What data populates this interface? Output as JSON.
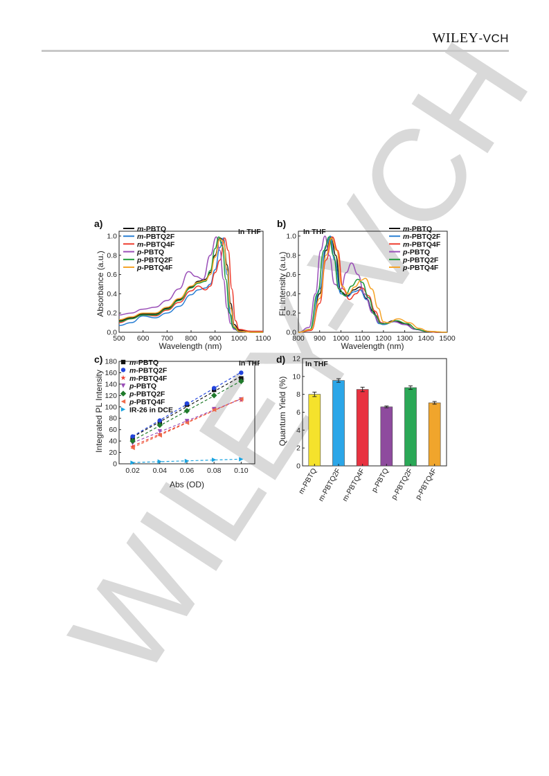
{
  "header": {
    "brand_main": "WILEY",
    "brand_suffix": "-VCH"
  },
  "watermark": {
    "text": "WILEY-VCH",
    "color": "#d9d9d9"
  },
  "colors": {
    "m-PBTQ": "#111111",
    "m-PBTQ2F": "#2a7fd4",
    "m-PBTQ4F": "#ee3a2c",
    "p-PBTQ": "#9a4fb8",
    "p-PBTQ2F": "#1f9a3a",
    "p-PBTQ4F": "#f5a428",
    "IR-26 in DCE": "#1aa3e0"
  },
  "chart_data": [
    {
      "type": "line",
      "panel_label": "a)",
      "annotation": "In THF",
      "xlabel": "Wavelength (nm)",
      "ylabel": "Absorbance (a.u.)",
      "xlim": [
        500,
        1100
      ],
      "ylim": [
        0,
        1.05
      ],
      "xticks": [
        "500",
        "600",
        "700",
        "800",
        "900",
        "1000",
        "1100"
      ],
      "yticks": [
        "0.0",
        "0.2",
        "0.4",
        "0.6",
        "0.8",
        "1.0"
      ],
      "legend_position": "top-left",
      "series": [
        {
          "name": "m-PBTQ",
          "prefix": "m",
          "suffix": "-PBTQ",
          "color": "#111111",
          "x": [
            500,
            550,
            600,
            650,
            700,
            750,
            800,
            830,
            860,
            880,
            900,
            920,
            935,
            950,
            965,
            980,
            1000,
            1050,
            1100
          ],
          "y": [
            0.12,
            0.15,
            0.19,
            0.19,
            0.25,
            0.34,
            0.47,
            0.53,
            0.55,
            0.62,
            0.8,
            0.98,
            0.96,
            0.7,
            0.3,
            0.08,
            0.02,
            0.01,
            0.01
          ]
        },
        {
          "name": "m-PBTQ2F",
          "prefix": "m",
          "suffix": "-PBTQ2F",
          "color": "#2a7fd4",
          "x": [
            500,
            550,
            600,
            650,
            700,
            750,
            800,
            830,
            860,
            880,
            900,
            920,
            935,
            950,
            965,
            980,
            1000,
            1050,
            1100
          ],
          "y": [
            0.07,
            0.1,
            0.17,
            0.15,
            0.2,
            0.27,
            0.39,
            0.44,
            0.46,
            0.5,
            0.65,
            0.88,
            0.98,
            0.6,
            0.18,
            0.04,
            0.01,
            0.0,
            0.0
          ]
        },
        {
          "name": "m-PBTQ4F",
          "prefix": "m",
          "suffix": "-PBTQ4F",
          "color": "#ee3a2c",
          "x": [
            500,
            550,
            600,
            650,
            700,
            750,
            800,
            830,
            860,
            880,
            900,
            920,
            940,
            955,
            970,
            985,
            1000,
            1050,
            1100
          ],
          "y": [
            0.1,
            0.14,
            0.18,
            0.17,
            0.23,
            0.31,
            0.43,
            0.48,
            0.44,
            0.48,
            0.62,
            0.75,
            0.98,
            0.85,
            0.45,
            0.12,
            0.03,
            0.01,
            0.01
          ]
        },
        {
          "name": "p-PBTQ",
          "prefix": "p",
          "suffix": "-PBTQ",
          "color": "#9a4fb8",
          "x": [
            500,
            550,
            600,
            650,
            700,
            750,
            790,
            820,
            850,
            880,
            905,
            920,
            935,
            950,
            965,
            980,
            1000,
            1050,
            1100
          ],
          "y": [
            0.18,
            0.2,
            0.24,
            0.26,
            0.33,
            0.45,
            0.63,
            0.58,
            0.55,
            0.8,
            0.99,
            0.85,
            0.55,
            0.25,
            0.09,
            0.03,
            0.01,
            0.0,
            0.0
          ]
        },
        {
          "name": "p-PBTQ2F",
          "prefix": "p",
          "suffix": "-PBTQ2F",
          "color": "#1f9a3a",
          "x": [
            500,
            550,
            600,
            650,
            700,
            750,
            800,
            830,
            860,
            880,
            900,
            915,
            930,
            945,
            960,
            975,
            1000,
            1050,
            1100
          ],
          "y": [
            0.11,
            0.14,
            0.18,
            0.18,
            0.24,
            0.33,
            0.46,
            0.51,
            0.53,
            0.64,
            0.87,
            0.99,
            0.9,
            0.55,
            0.2,
            0.05,
            0.01,
            0.0,
            0.0
          ]
        },
        {
          "name": "p-PBTQ4F",
          "prefix": "p",
          "suffix": "-PBTQ4F",
          "color": "#f5a428",
          "x": [
            500,
            550,
            600,
            650,
            700,
            750,
            800,
            830,
            860,
            880,
            900,
            920,
            935,
            950,
            965,
            980,
            1000,
            1050,
            1100
          ],
          "y": [
            0.13,
            0.16,
            0.2,
            0.2,
            0.26,
            0.35,
            0.48,
            0.52,
            0.54,
            0.6,
            0.78,
            0.97,
            0.94,
            0.65,
            0.25,
            0.06,
            0.01,
            0.0,
            0.0
          ]
        }
      ]
    },
    {
      "type": "line",
      "panel_label": "b)",
      "annotation": "In THF",
      "xlabel": "Wavelength (nm)",
      "ylabel": "FL  Intensity (a.u.)",
      "xlim": [
        800,
        1500
      ],
      "ylim": [
        0,
        1.05
      ],
      "xticks": [
        "800",
        "900",
        "1000",
        "1100",
        "1200",
        "1300",
        "1400",
        "1500"
      ],
      "yticks": [
        "0.0",
        "0.2",
        "0.4",
        "0.6",
        "0.8",
        "1.0"
      ],
      "legend_position": "top-right",
      "series": [
        {
          "name": "m-PBTQ",
          "prefix": "m",
          "suffix": "-PBTQ",
          "color": "#111111",
          "x": [
            800,
            860,
            900,
            930,
            955,
            975,
            1000,
            1030,
            1060,
            1090,
            1120,
            1150,
            1180,
            1200,
            1250,
            1300,
            1350,
            1400,
            1450,
            1500
          ],
          "y": [
            0.0,
            0.03,
            0.4,
            0.85,
            0.99,
            0.8,
            0.42,
            0.38,
            0.44,
            0.47,
            0.35,
            0.22,
            0.1,
            0.09,
            0.12,
            0.09,
            0.03,
            0.01,
            0.0,
            0.0
          ]
        },
        {
          "name": "m-PBTQ2F",
          "prefix": "m",
          "suffix": "-PBTQ2F",
          "color": "#2a7fd4",
          "x": [
            800,
            860,
            900,
            930,
            950,
            970,
            1000,
            1030,
            1060,
            1090,
            1120,
            1150,
            1180,
            1200,
            1250,
            1300,
            1350,
            1400,
            1450,
            1500
          ],
          "y": [
            0.0,
            0.03,
            0.45,
            0.9,
            1.0,
            0.75,
            0.4,
            0.37,
            0.42,
            0.44,
            0.34,
            0.2,
            0.09,
            0.08,
            0.11,
            0.08,
            0.03,
            0.01,
            0.0,
            0.0
          ]
        },
        {
          "name": "m-PBTQ4F",
          "prefix": "m",
          "suffix": "-PBTQ4F",
          "color": "#ee3a2c",
          "x": [
            800,
            860,
            900,
            930,
            960,
            985,
            1010,
            1040,
            1070,
            1100,
            1130,
            1160,
            1190,
            1210,
            1260,
            1310,
            1360,
            1400,
            1450,
            1500
          ],
          "y": [
            0.0,
            0.02,
            0.3,
            0.75,
            0.99,
            0.85,
            0.45,
            0.34,
            0.4,
            0.46,
            0.38,
            0.22,
            0.1,
            0.09,
            0.12,
            0.09,
            0.03,
            0.01,
            0.0,
            0.0
          ]
        },
        {
          "name": "p-PBTQ",
          "prefix": "p",
          "suffix": "-PBTQ",
          "color": "#9a4fb8",
          "x": [
            800,
            850,
            880,
            905,
            925,
            945,
            970,
            1000,
            1025,
            1050,
            1080,
            1110,
            1150,
            1180,
            1200,
            1250,
            1300,
            1350,
            1400,
            1500
          ],
          "y": [
            0.0,
            0.05,
            0.4,
            0.85,
            1.0,
            0.8,
            0.5,
            0.45,
            0.62,
            0.72,
            0.6,
            0.4,
            0.2,
            0.1,
            0.09,
            0.11,
            0.08,
            0.03,
            0.01,
            0.0
          ]
        },
        {
          "name": "p-PBTQ2F",
          "prefix": "p",
          "suffix": "-PBTQ2F",
          "color": "#1f9a3a",
          "x": [
            800,
            855,
            890,
            920,
            945,
            965,
            990,
            1020,
            1050,
            1080,
            1100,
            1130,
            1160,
            1190,
            1210,
            1260,
            1310,
            1360,
            1400,
            1500
          ],
          "y": [
            0.0,
            0.03,
            0.4,
            0.85,
            0.99,
            0.8,
            0.45,
            0.38,
            0.48,
            0.55,
            0.52,
            0.36,
            0.18,
            0.09,
            0.09,
            0.12,
            0.09,
            0.03,
            0.01,
            0.0
          ]
        },
        {
          "name": "p-PBTQ4F",
          "prefix": "p",
          "suffix": "-PBTQ4F",
          "color": "#f5a428",
          "x": [
            800,
            860,
            900,
            930,
            955,
            980,
            1005,
            1035,
            1065,
            1095,
            1115,
            1145,
            1175,
            1200,
            1220,
            1270,
            1320,
            1370,
            1410,
            1500
          ],
          "y": [
            0.0,
            0.03,
            0.35,
            0.8,
            0.98,
            0.85,
            0.48,
            0.4,
            0.47,
            0.54,
            0.56,
            0.45,
            0.25,
            0.11,
            0.1,
            0.14,
            0.1,
            0.04,
            0.01,
            0.0
          ]
        }
      ]
    },
    {
      "type": "scatter",
      "panel_label": "c)",
      "annotation": "In THF",
      "xlabel": "Abs (OD)",
      "ylabel": "Integrated PL Intensity",
      "xlim": [
        0.01,
        0.11
      ],
      "ylim": [
        0,
        180
      ],
      "xticks": [
        "0.02",
        "0.04",
        "0.06",
        "0.08",
        "0.10"
      ],
      "yticks": [
        "0",
        "20",
        "40",
        "60",
        "80",
        "100",
        "120",
        "140",
        "160",
        "180"
      ],
      "legend_position": "top-left",
      "x": [
        0.02,
        0.04,
        0.06,
        0.08,
        0.1
      ],
      "series": [
        {
          "name": "m-PBTQ",
          "prefix": "m",
          "suffix": "-PBTQ",
          "color": "#111111",
          "marker": "square",
          "y": [
            45,
            73,
            104,
            130,
            150
          ]
        },
        {
          "name": "m-PBTQ2F",
          "prefix": "m",
          "suffix": "-PBTQ2F",
          "color": "#2244dd",
          "marker": "circle",
          "y": [
            48,
            76,
            106,
            133,
            160
          ]
        },
        {
          "name": "m-PBTQ4F",
          "prefix": "m",
          "suffix": "-PBTQ4F",
          "color": "#ee3a2c",
          "marker": "star",
          "y": [
            30,
            52,
            74,
            96,
            112
          ]
        },
        {
          "name": "p-PBTQ",
          "prefix": "p",
          "suffix": "-PBTQ",
          "color": "#9a4fb8",
          "marker": "triangle-down",
          "y": [
            36,
            57,
            75,
            96,
            113
          ]
        },
        {
          "name": "p-PBTQ2F",
          "prefix": "p",
          "suffix": "-PBTQ2F",
          "color": "#1f7a2a",
          "marker": "diamond",
          "y": [
            40,
            68,
            93,
            120,
            145
          ]
        },
        {
          "name": "p-PBTQ4F",
          "prefix": "p",
          "suffix": "-PBTQ4F",
          "color": "#ee6a4a",
          "marker": "triangle-left",
          "y": [
            28,
            50,
            72,
            95,
            114
          ]
        },
        {
          "name": "IR-26 in DCE",
          "prefix": "",
          "suffix": "IR-26 in DCE",
          "color": "#1aa3e0",
          "marker": "triangle-right",
          "y": [
            2,
            4,
            5,
            7,
            8
          ]
        }
      ]
    },
    {
      "type": "bar",
      "panel_label": "d)",
      "annotation": "In THF",
      "xlabel": "",
      "ylabel": "Quantum Yield (%)",
      "ylim": [
        0,
        12
      ],
      "yticks": [
        "0",
        "2",
        "4",
        "6",
        "8",
        "10",
        "12"
      ],
      "categories": [
        "m-PBTQ",
        "m-PBTQ2F",
        "m-PBTQ4F",
        "p-PBTQ",
        "p-PBTQ2F",
        "p-PBTQ4F"
      ],
      "values": [
        8.0,
        9.55,
        8.55,
        6.6,
        8.75,
        7.05
      ],
      "errors": [
        0.25,
        0.2,
        0.25,
        0.1,
        0.2,
        0.15
      ],
      "bar_colors": [
        "#f5e22c",
        "#2ba6e8",
        "#e83240",
        "#8e4b9e",
        "#2aa856",
        "#f0a52c"
      ]
    }
  ]
}
